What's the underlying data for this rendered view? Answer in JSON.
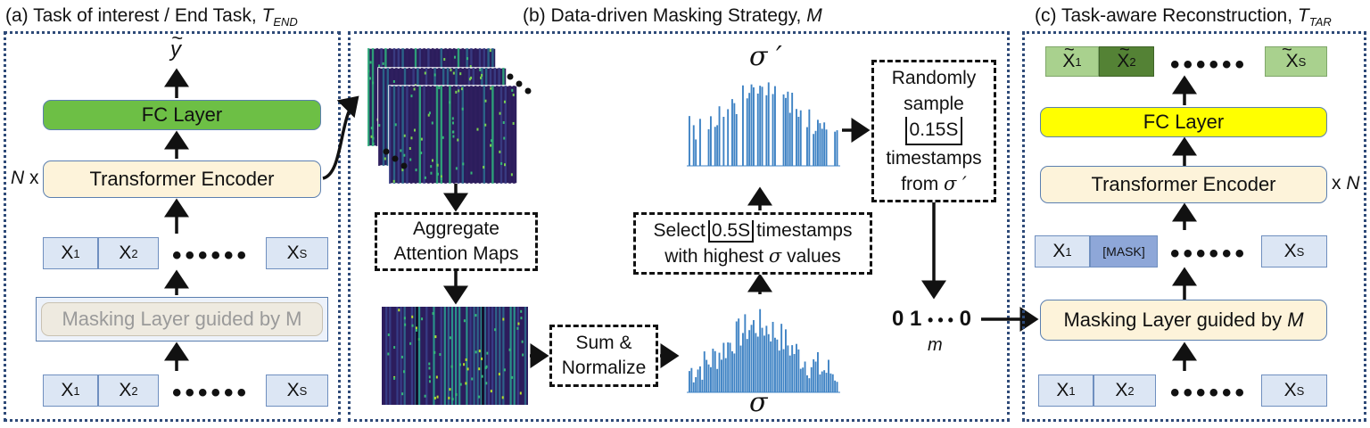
{
  "panel_a": {
    "title_prefix": "(a) Task of interest / End Task, ",
    "title_symbol": "T",
    "title_sub": "END",
    "output": "y",
    "output_tilde": "~",
    "fc": "FC Layer",
    "encoder": "Transformer Encoder",
    "repeat": "N",
    "repeat_x": " x",
    "masking": "Masking Layer guided by M",
    "tokens_top": [
      "X1",
      "X2",
      "XS"
    ],
    "tokens_bottom": [
      "X1",
      "X2",
      "XS"
    ],
    "dots": "••••••",
    "colors": {
      "fc": "#6dbf45",
      "encoder": "#fdf3da",
      "masking": "#eeeae0",
      "token": "#dce6f4"
    }
  },
  "panel_b": {
    "title_prefix": "(b) Data-driven Masking Strategy, ",
    "title_symbol": "M",
    "aggregate_line1": "Aggregate",
    "aggregate_line2": "Attention Maps",
    "sum_line1": "Sum &",
    "sum_line2": "Normalize",
    "sigma": "σ",
    "sigma_prime": "σ ′",
    "select_pre": "Select",
    "select_floor": "0.5S",
    "select_post": "timestamps",
    "select_line2_pre": "with highest ",
    "select_line2_sym": "σ",
    "select_line2_post": " values",
    "sample_line1": "Randomly",
    "sample_line2": "sample",
    "sample_floor": "0.15S",
    "sample_line4": "timestamps",
    "sample_line5_pre": "from ",
    "sample_line5_sym": "σ ′",
    "mask_vector": "0 1",
    "mask_vector_dots": "• • •",
    "mask_vector_end": "0",
    "mask_symbol": "m",
    "colors": {
      "bars": "#3f83c4"
    }
  },
  "panel_c": {
    "title_prefix": "(c) Task-aware Reconstruction, ",
    "title_symbol": "T",
    "title_sub": "TAR",
    "outputs": [
      "X1",
      "X2",
      "XS"
    ],
    "fc": "FC Layer",
    "encoder": "Transformer Encoder",
    "repeat_x": "x ",
    "repeat": "N",
    "tokens_mid": [
      "X1",
      "[MASK]",
      "XS"
    ],
    "masking_pre": "Masking Layer guided by ",
    "masking_sym": "M",
    "tokens_bottom": [
      "X1",
      "X2",
      "XS"
    ],
    "dots": "••••••",
    "colors": {
      "fc": "#ffff00",
      "encoder": "#fdf3da",
      "mask_token": "#8ea7d8",
      "out_light": "#a9d18e",
      "out_dark": "#548235"
    }
  }
}
